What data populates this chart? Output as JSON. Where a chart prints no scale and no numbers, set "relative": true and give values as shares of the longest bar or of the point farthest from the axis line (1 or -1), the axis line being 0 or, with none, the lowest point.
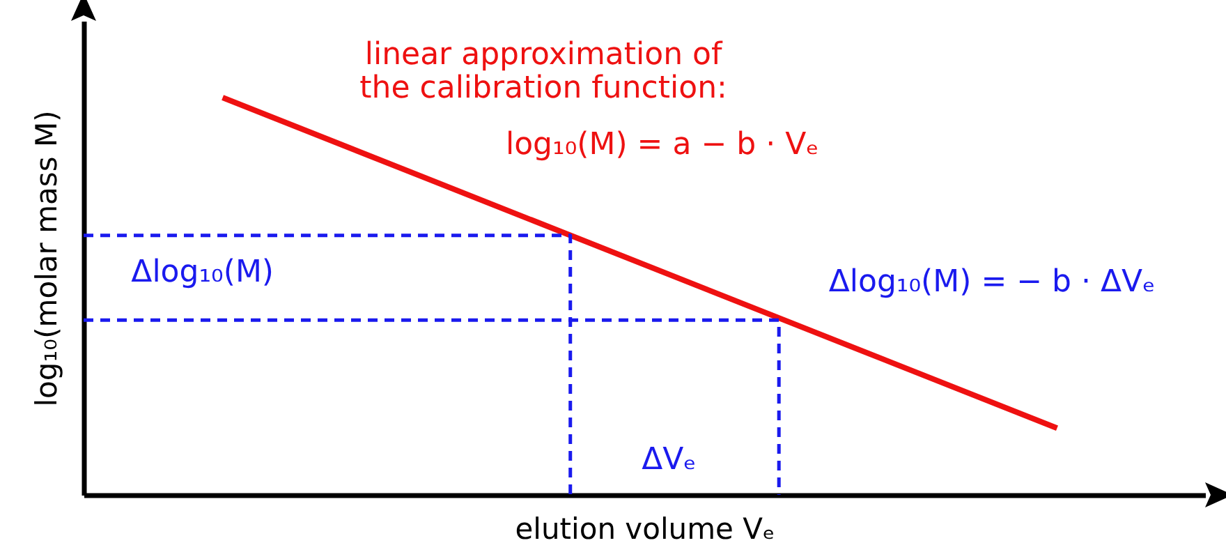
{
  "chart_data": {
    "type": "line",
    "relative": true,
    "xlabel": "elution volume Vₑ",
    "ylabel": "log₁₀(molar mass M)",
    "categories": [
      null,
      null,
      null,
      null,
      null,
      null,
      null,
      null,
      null,
      null,
      null,
      null,
      null,
      null,
      null,
      null,
      null
    ],
    "series": [
      {
        "color": "#ee1111",
        "line_style": "solid",
        "values": [
          null,
          null,
          1,
          null,
          null,
          null,
          null,
          null,
          null,
          null,
          null,
          null,
          null,
          null,
          0.168,
          null,
          null
        ]
      },
      {
        "type": "step",
        "color": "#1a1aee",
        "line_style": "dashed",
        "values": [
          0.653,
          null,
          null,
          null,
          null,
          null,
          null,
          0,
          null,
          null,
          null,
          null,
          null,
          null,
          null,
          null,
          null
        ]
      },
      {
        "type": "step",
        "color": "#1a1aee",
        "line_style": "dashed",
        "values": [
          0.44,
          null,
          null,
          null,
          null,
          null,
          null,
          null,
          null,
          null,
          0,
          null,
          null,
          null,
          null,
          null,
          null
        ]
      }
    ],
    "annotations": [
      "linear approximation of\nthe calibration function:",
      "log₁₀(M) = a − b · Vₑ",
      "Δlog₁₀(M)",
      "Δlog₁₀(M) = − b · ΔVₑ",
      "ΔVₑ"
    ]
  }
}
